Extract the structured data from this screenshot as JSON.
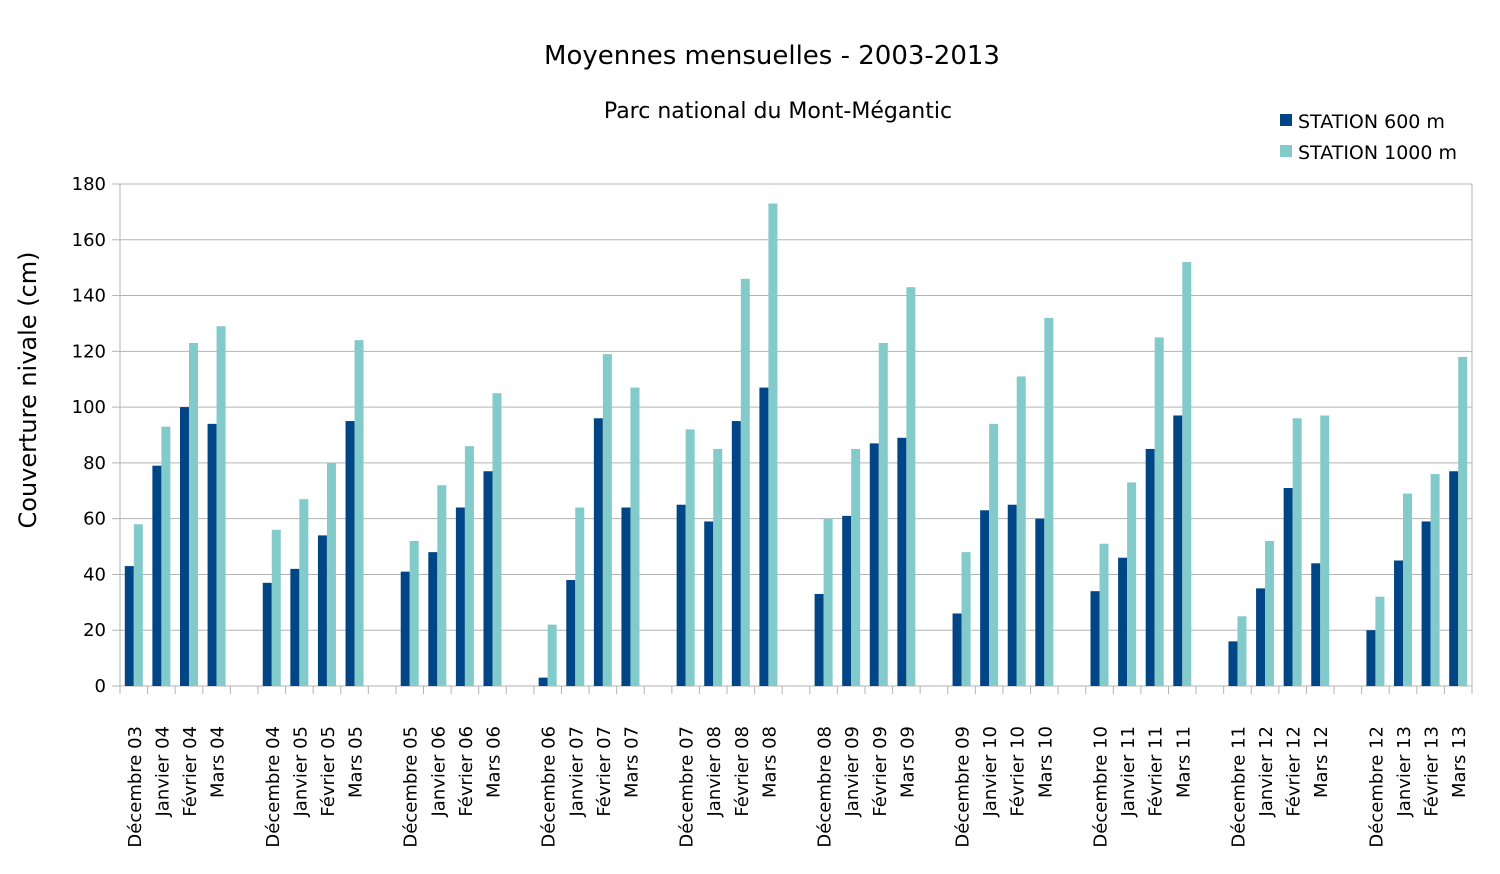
{
  "chart_data": {
    "type": "bar",
    "title": "Moyennes mensuelles - 2003-2013",
    "subtitle": "Parc national du Mont-Mégantic",
    "xlabel": "",
    "ylabel": "Couverture nivale (cm)",
    "ylim": [
      0,
      180
    ],
    "yticks": [
      0,
      20,
      40,
      60,
      80,
      100,
      120,
      140,
      160,
      180
    ],
    "grid": true,
    "legend_position": "top-right",
    "groups": [
      [
        "Décembre 03",
        "Janvier 04",
        "Février 04",
        "Mars 04"
      ],
      [
        "Décembre 04",
        "Janvier 05",
        "Février 05",
        "Mars 05"
      ],
      [
        "Décembre 05",
        "Janvier 06",
        "Février 06",
        "Mars 06"
      ],
      [
        "Décembre 06",
        "Janvier 07",
        "Février 07",
        "Mars 07"
      ],
      [
        "Décembre 07",
        "Janvier 08",
        "Février 08",
        "Mars 08"
      ],
      [
        "Décembre 08",
        "Janvier 09",
        "Février 09",
        "Mars 09"
      ],
      [
        "Décembre 09",
        "Janvier 10",
        "Février 10",
        "Mars 10"
      ],
      [
        "Décembre 10",
        "Janvier 11",
        "Février 11",
        "Mars 11"
      ],
      [
        "Décembre 11",
        "Janvier 12",
        "Février 12",
        "Mars 12"
      ],
      [
        "Décembre 12",
        "Janvier 13",
        "Février 13",
        "Mars 13"
      ]
    ],
    "series": [
      {
        "name": "STATION 600 m",
        "color": "#004586",
        "values": [
          [
            43,
            79,
            100,
            94
          ],
          [
            37,
            42,
            54,
            95
          ],
          [
            41,
            48,
            64,
            77
          ],
          [
            3,
            38,
            96,
            64
          ],
          [
            65,
            59,
            95,
            107
          ],
          [
            33,
            61,
            87,
            89
          ],
          [
            26,
            63,
            65,
            60
          ],
          [
            34,
            46,
            85,
            97
          ],
          [
            16,
            35,
            71,
            44
          ],
          [
            20,
            45,
            59,
            77
          ]
        ]
      },
      {
        "name": "STATION 1000 m",
        "color": "#83caca",
        "values": [
          [
            58,
            93,
            123,
            129
          ],
          [
            56,
            67,
            80,
            124
          ],
          [
            52,
            72,
            86,
            105
          ],
          [
            22,
            64,
            119,
            107
          ],
          [
            92,
            85,
            146,
            173
          ],
          [
            60,
            85,
            123,
            143
          ],
          [
            48,
            94,
            111,
            132
          ],
          [
            51,
            73,
            125,
            152
          ],
          [
            25,
            52,
            96,
            97
          ],
          [
            32,
            69,
            76,
            118
          ]
        ]
      }
    ]
  }
}
